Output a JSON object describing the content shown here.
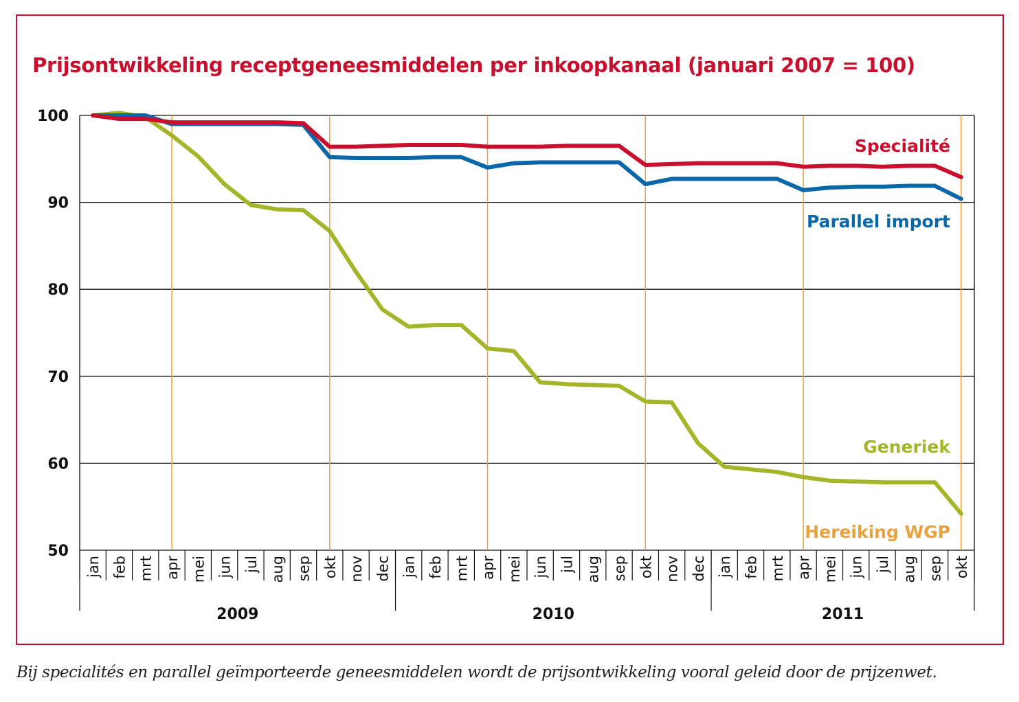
{
  "chart_data": {
    "type": "line",
    "title": "Prijsontwikkeling receptgeneesmiddelen per inkoopkanaal (januari 2007 = 100)",
    "xlabel": "",
    "ylabel": "",
    "ylim": [
      50,
      100
    ],
    "yticks": [
      100,
      90,
      80,
      70,
      60,
      50
    ],
    "grid": true,
    "categories": [
      "jan",
      "feb",
      "mrt",
      "apr",
      "mei",
      "jun",
      "jul",
      "aug",
      "sep",
      "okt",
      "nov",
      "dec",
      "jan",
      "feb",
      "mrt",
      "apr",
      "mei",
      "jun",
      "jul",
      "aug",
      "sep",
      "okt",
      "nov",
      "dec",
      "jan",
      "feb",
      "mrt",
      "apr",
      "mei",
      "jun",
      "jul",
      "aug",
      "sep",
      "okt"
    ],
    "years": [
      {
        "label": "2009",
        "months": 12
      },
      {
        "label": "2010",
        "months": 12
      },
      {
        "label": "2011",
        "months": 10
      }
    ],
    "series": [
      {
        "name": "Specialité",
        "color": "#c8102e",
        "values": [
          100,
          99.6,
          99.6,
          99.2,
          99.2,
          99.2,
          99.2,
          99.2,
          99.1,
          96.4,
          96.4,
          96.5,
          96.6,
          96.6,
          96.6,
          96.4,
          96.4,
          96.4,
          96.5,
          96.5,
          96.5,
          94.3,
          94.4,
          94.5,
          94.5,
          94.5,
          94.5,
          94.1,
          94.2,
          94.2,
          94.1,
          94.2,
          94.2,
          92.9
        ]
      },
      {
        "name": "Parallel import",
        "color": "#0a68a8",
        "values": [
          100,
          100,
          100,
          99,
          99,
          99,
          99,
          99,
          98.9,
          95.2,
          95.1,
          95.1,
          95.1,
          95.2,
          95.2,
          94,
          94.5,
          94.6,
          94.6,
          94.6,
          94.6,
          92.1,
          92.7,
          92.7,
          92.7,
          92.7,
          92.7,
          91.4,
          91.7,
          91.8,
          91.8,
          91.9,
          91.9,
          90.4
        ]
      },
      {
        "name": "Generiek",
        "color": "#a4b52a",
        "values": [
          100,
          100.3,
          99.8,
          97.7,
          95.3,
          92.1,
          89.7,
          89.2,
          89.1,
          86.7,
          82,
          77.7,
          75.7,
          75.9,
          75.9,
          73.2,
          72.9,
          69.3,
          69.1,
          69,
          68.9,
          67.1,
          67,
          62.3,
          59.6,
          59.3,
          59,
          58.4,
          58,
          57.9,
          57.8,
          57.8,
          57.8,
          54.2
        ]
      }
    ],
    "event_markers": {
      "label": "Hereiking WGP",
      "color": "#e8a33c",
      "month_indices": [
        3,
        9,
        15,
        21,
        27,
        33
      ]
    }
  },
  "caption": "Bij specialités en parallel geïmporteerde geneesmiddelen wordt de prijsontwikkeling vooral geleid door de prijzenwet."
}
